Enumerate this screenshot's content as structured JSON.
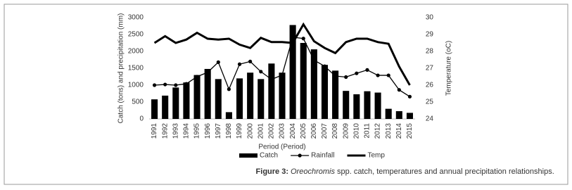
{
  "chart_data": {
    "type": "bar-line",
    "x_label": "Period (Period)",
    "y_label": "Catch (tons) and precipitation (mm)",
    "y2_label": "Temperature (oC)",
    "categories": [
      "1991",
      "1992",
      "1993",
      "1994",
      "1995",
      "1996",
      "1997",
      "1998",
      "1999",
      "2000",
      "2001",
      "2002",
      "2003",
      "2004",
      "2005",
      "2006",
      "2007",
      "2008",
      "2009",
      "2010",
      "2011",
      "2012",
      "2013",
      "2014",
      "2015"
    ],
    "series": [
      {
        "name": "Catch",
        "type": "bar",
        "color": "#000000",
        "values": [
          580,
          690,
          930,
          1080,
          1300,
          1480,
          1180,
          200,
          1200,
          1370,
          1180,
          1640,
          1370,
          2780,
          2250,
          2060,
          1600,
          1430,
          830,
          730,
          820,
          780,
          300,
          230,
          180
        ]
      },
      {
        "name": "Rainfall",
        "type": "line",
        "marker": true,
        "color": "#000000",
        "values": [
          1000,
          1020,
          1000,
          1040,
          1250,
          1380,
          1680,
          880,
          1620,
          1700,
          1400,
          1170,
          1300,
          2420,
          2380,
          1740,
          1560,
          1270,
          1240,
          1350,
          1450,
          1290,
          1290,
          860,
          660
        ]
      },
      {
        "name": "Temp",
        "type": "line",
        "marker": false,
        "axis": "y2",
        "color": "#000000",
        "values": [
          28.5,
          28.9,
          28.5,
          28.7,
          29.1,
          28.75,
          28.7,
          28.75,
          28.4,
          28.2,
          28.8,
          28.55,
          28.55,
          28.5,
          29.6,
          28.6,
          28.2,
          27.9,
          28.55,
          28.75,
          28.75,
          28.55,
          28.45,
          27.1,
          26.0
        ]
      }
    ],
    "ylim": [
      0,
      3000
    ],
    "yticks": [
      0,
      500,
      1000,
      1500,
      2000,
      2500,
      3000
    ],
    "y2lim": [
      24,
      30
    ],
    "y2ticks": [
      24,
      25,
      26,
      27,
      28,
      29,
      30
    ],
    "legend": "bottom",
    "caption": {
      "label": "Figure 3:",
      "species": "Oreochromis",
      "text": "spp. catch, temperatures and annual precipitation relationships."
    }
  }
}
